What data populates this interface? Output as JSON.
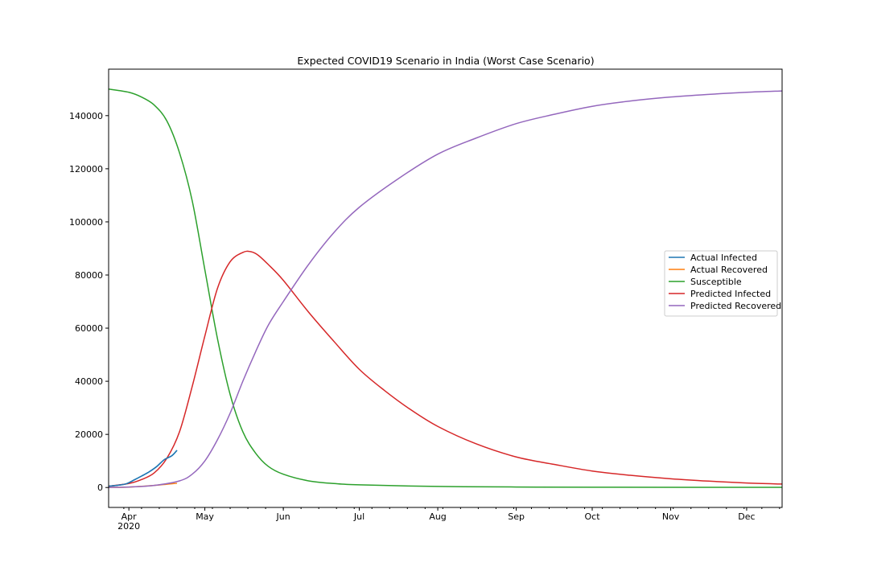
{
  "chart_data": {
    "type": "line",
    "title": "Expected COVID19 Scenario in India (Worst Case Scenario)",
    "xlabel": "",
    "ylabel": "",
    "x_domain": [
      "2020-03-24",
      "2020-12-15"
    ],
    "y_domain": [
      -7500,
      157500
    ],
    "y_ticks": [
      0,
      20000,
      40000,
      60000,
      80000,
      100000,
      120000,
      140000
    ],
    "y_tick_labels": [
      "0",
      "20000",
      "40000",
      "60000",
      "80000",
      "100000",
      "120000",
      "140000"
    ],
    "x_ticks": [
      {
        "date": "2020-04-01",
        "label": "Apr",
        "sublabel": "2020"
      },
      {
        "date": "2020-05-01",
        "label": "May",
        "sublabel": ""
      },
      {
        "date": "2020-06-01",
        "label": "Jun",
        "sublabel": ""
      },
      {
        "date": "2020-07-01",
        "label": "Jul",
        "sublabel": ""
      },
      {
        "date": "2020-08-01",
        "label": "Aug",
        "sublabel": ""
      },
      {
        "date": "2020-09-01",
        "label": "Sep",
        "sublabel": ""
      },
      {
        "date": "2020-10-01",
        "label": "Oct",
        "sublabel": ""
      },
      {
        "date": "2020-11-01",
        "label": "Nov",
        "sublabel": ""
      },
      {
        "date": "2020-12-01",
        "label": "Dec",
        "sublabel": ""
      }
    ],
    "grid": false,
    "legend_position": "center-right",
    "series": [
      {
        "name": "Actual Infected",
        "color": "#1f77b4",
        "points": [
          [
            "2020-03-24",
            500
          ],
          [
            "2020-03-28",
            900
          ],
          [
            "2020-03-31",
            1400
          ],
          [
            "2020-04-03",
            2800
          ],
          [
            "2020-04-06",
            4300
          ],
          [
            "2020-04-09",
            5900
          ],
          [
            "2020-04-12",
            7900
          ],
          [
            "2020-04-15",
            10500
          ],
          [
            "2020-04-18",
            12000
          ],
          [
            "2020-04-20",
            14000
          ]
        ]
      },
      {
        "name": "Actual Recovered",
        "color": "#ff7f0e",
        "points": [
          [
            "2020-03-24",
            40
          ],
          [
            "2020-04-01",
            150
          ],
          [
            "2020-04-10",
            700
          ],
          [
            "2020-04-20",
            1600
          ]
        ]
      },
      {
        "name": "Susceptible",
        "color": "#2ca02c",
        "points": [
          [
            "2020-03-24",
            150000
          ],
          [
            "2020-04-01",
            148800
          ],
          [
            "2020-04-06",
            147000
          ],
          [
            "2020-04-11",
            144000
          ],
          [
            "2020-04-16",
            138000
          ],
          [
            "2020-04-21",
            126000
          ],
          [
            "2020-04-26",
            108000
          ],
          [
            "2020-05-01",
            82000
          ],
          [
            "2020-05-06",
            56000
          ],
          [
            "2020-05-11",
            35000
          ],
          [
            "2020-05-16",
            21000
          ],
          [
            "2020-05-21",
            13000
          ],
          [
            "2020-05-26",
            8000
          ],
          [
            "2020-06-01",
            5000
          ],
          [
            "2020-06-11",
            2500
          ],
          [
            "2020-06-21",
            1500
          ],
          [
            "2020-07-01",
            1000
          ],
          [
            "2020-08-01",
            400
          ],
          [
            "2020-09-01",
            200
          ],
          [
            "2020-10-01",
            100
          ],
          [
            "2020-12-15",
            50
          ]
        ]
      },
      {
        "name": "Predicted Infected",
        "color": "#d62728",
        "points": [
          [
            "2020-03-24",
            500
          ],
          [
            "2020-04-01",
            1500
          ],
          [
            "2020-04-06",
            3000
          ],
          [
            "2020-04-11",
            5500
          ],
          [
            "2020-04-16",
            11000
          ],
          [
            "2020-04-21",
            21000
          ],
          [
            "2020-04-26",
            38000
          ],
          [
            "2020-05-01",
            57000
          ],
          [
            "2020-05-06",
            75000
          ],
          [
            "2020-05-11",
            85000
          ],
          [
            "2020-05-16",
            88500
          ],
          [
            "2020-05-19",
            88800
          ],
          [
            "2020-05-22",
            87500
          ],
          [
            "2020-05-26",
            84000
          ],
          [
            "2020-06-01",
            78000
          ],
          [
            "2020-06-11",
            66000
          ],
          [
            "2020-06-21",
            55000
          ],
          [
            "2020-07-01",
            44500
          ],
          [
            "2020-07-11",
            36500
          ],
          [
            "2020-07-21",
            29500
          ],
          [
            "2020-08-01",
            23000
          ],
          [
            "2020-08-16",
            16500
          ],
          [
            "2020-09-01",
            11500
          ],
          [
            "2020-09-16",
            8700
          ],
          [
            "2020-10-01",
            6200
          ],
          [
            "2020-10-16",
            4600
          ],
          [
            "2020-11-01",
            3300
          ],
          [
            "2020-11-16",
            2400
          ],
          [
            "2020-12-01",
            1700
          ],
          [
            "2020-12-15",
            1300
          ]
        ]
      },
      {
        "name": "Predicted Recovered",
        "color": "#9467bd",
        "points": [
          [
            "2020-03-24",
            40
          ],
          [
            "2020-04-01",
            200
          ],
          [
            "2020-04-11",
            800
          ],
          [
            "2020-04-21",
            2500
          ],
          [
            "2020-04-26",
            5000
          ],
          [
            "2020-05-01",
            10000
          ],
          [
            "2020-05-06",
            18000
          ],
          [
            "2020-05-11",
            28000
          ],
          [
            "2020-05-16",
            40000
          ],
          [
            "2020-05-21",
            51000
          ],
          [
            "2020-05-26",
            61000
          ],
          [
            "2020-06-01",
            70000
          ],
          [
            "2020-06-11",
            84000
          ],
          [
            "2020-06-21",
            96000
          ],
          [
            "2020-07-01",
            105500
          ],
          [
            "2020-07-16",
            116000
          ],
          [
            "2020-08-01",
            125500
          ],
          [
            "2020-08-16",
            131500
          ],
          [
            "2020-09-01",
            137000
          ],
          [
            "2020-09-16",
            140500
          ],
          [
            "2020-10-01",
            143500
          ],
          [
            "2020-10-16",
            145500
          ],
          [
            "2020-11-01",
            147000
          ],
          [
            "2020-11-16",
            148000
          ],
          [
            "2020-12-01",
            148800
          ],
          [
            "2020-12-15",
            149300
          ]
        ]
      }
    ]
  }
}
